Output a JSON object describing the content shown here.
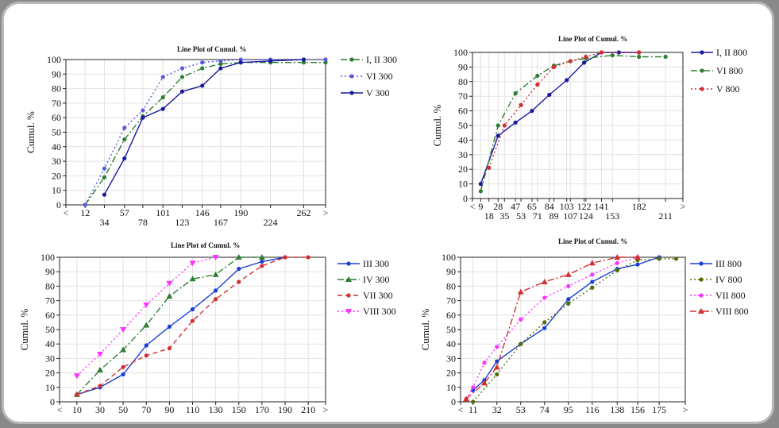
{
  "chart_data": [
    {
      "type": "line",
      "title": "Line Plot of Cumul. %",
      "ylabel": "Cumul. %",
      "ylim": [
        0,
        100
      ],
      "yticks": [
        0,
        10,
        20,
        30,
        40,
        50,
        60,
        70,
        80,
        90,
        100
      ],
      "xlim": [
        -10,
        287
      ],
      "xticks": [
        {
          "v": -10,
          "label": "<"
        },
        {
          "v": 12,
          "label": "12"
        },
        {
          "v": 34,
          "label": "34"
        },
        {
          "v": 57,
          "label": "57"
        },
        {
          "v": 78,
          "label": "78"
        },
        {
          "v": 101,
          "label": "101"
        },
        {
          "v": 123,
          "label": "123"
        },
        {
          "v": 146,
          "label": "146"
        },
        {
          "v": 167,
          "label": "167"
        },
        {
          "v": 190,
          "label": "190"
        },
        {
          "v": 224,
          "label": "224"
        },
        {
          "v": 262,
          "label": "262"
        },
        {
          "v": 287,
          "label": ">"
        }
      ],
      "series": [
        {
          "name": "I, II 300",
          "color": "#2e7d32",
          "style": "dashdot",
          "marker": "dot",
          "points": [
            [
              12,
              0
            ],
            [
              34,
              19
            ],
            [
              57,
              45
            ],
            [
              78,
              61
            ],
            [
              101,
              74
            ],
            [
              123,
              88
            ],
            [
              146,
              94
            ],
            [
              167,
              97
            ],
            [
              190,
              98
            ],
            [
              224,
              98
            ],
            [
              262,
              98
            ],
            [
              287,
              98
            ]
          ]
        },
        {
          "name": "VI 300",
          "color": "#5a5ae0",
          "style": "dotted",
          "marker": "dot",
          "points": [
            [
              12,
              0
            ],
            [
              34,
              25
            ],
            [
              57,
              53
            ],
            [
              78,
              65
            ],
            [
              101,
              88
            ],
            [
              123,
              94
            ],
            [
              146,
              98
            ],
            [
              167,
              99
            ],
            [
              190,
              100
            ],
            [
              224,
              100
            ],
            [
              262,
              100
            ],
            [
              287,
              100
            ]
          ]
        },
        {
          "name": "V 300",
          "color": "#1a1aa0",
          "style": "solid",
          "marker": "dot",
          "points": [
            [
              34,
              7
            ],
            [
              57,
              32
            ],
            [
              78,
              60
            ],
            [
              101,
              66
            ],
            [
              123,
              78
            ],
            [
              146,
              82
            ],
            [
              167,
              94
            ],
            [
              190,
              98
            ],
            [
              224,
              99
            ],
            [
              262,
              100
            ]
          ]
        }
      ]
    },
    {
      "type": "line",
      "title": "Line Plot of Cumul. %",
      "ylabel": "Cumul. %",
      "ylim": [
        0,
        100
      ],
      "yticks": [
        0,
        10,
        20,
        30,
        40,
        50,
        60,
        70,
        80,
        90,
        100
      ],
      "xlim": [
        0,
        230
      ],
      "xticks": [
        {
          "v": 0,
          "label": "<"
        },
        {
          "v": 9,
          "label": "9"
        },
        {
          "v": 18,
          "label": "18"
        },
        {
          "v": 28,
          "label": "28"
        },
        {
          "v": 35,
          "label": "35"
        },
        {
          "v": 47,
          "label": "47"
        },
        {
          "v": 53,
          "label": "53"
        },
        {
          "v": 65,
          "label": "65"
        },
        {
          "v": 71,
          "label": "71"
        },
        {
          "v": 84,
          "label": "84"
        },
        {
          "v": 89,
          "label": "89"
        },
        {
          "v": 103,
          "label": "103"
        },
        {
          "v": 107,
          "label": "107"
        },
        {
          "v": 122,
          "label": "122"
        },
        {
          "v": 124,
          "label": "124"
        },
        {
          "v": 141,
          "label": "141"
        },
        {
          "v": 153,
          "label": "153"
        },
        {
          "v": 182,
          "label": "182"
        },
        {
          "v": 211,
          "label": "211"
        },
        {
          "v": 230,
          "label": ">"
        }
      ],
      "series": [
        {
          "name": "I, II 800",
          "color": "#1a1aa0",
          "style": "solid",
          "marker": "dot",
          "points": [
            [
              9,
              10
            ],
            [
              28,
              43
            ],
            [
              47,
              52
            ],
            [
              65,
              60
            ],
            [
              84,
              71
            ],
            [
              103,
              81
            ],
            [
              122,
              93
            ],
            [
              141,
              100
            ],
            [
              160,
              100
            ],
            [
              182,
              100
            ]
          ]
        },
        {
          "name": "VI 800",
          "color": "#2e7d32",
          "style": "dashdot",
          "marker": "dot",
          "points": [
            [
              9,
              5
            ],
            [
              28,
              50
            ],
            [
              47,
              72
            ],
            [
              71,
              84
            ],
            [
              89,
              91
            ],
            [
              107,
              94
            ],
            [
              124,
              96
            ],
            [
              153,
              98
            ],
            [
              182,
              97
            ],
            [
              211,
              97
            ]
          ]
        },
        {
          "name": "V 800",
          "color": "#d32f2f",
          "style": "dotted",
          "marker": "dot",
          "points": [
            [
              18,
              21
            ],
            [
              35,
              50
            ],
            [
              53,
              64
            ],
            [
              71,
              78
            ],
            [
              89,
              90
            ],
            [
              107,
              94
            ],
            [
              124,
              97
            ],
            [
              141,
              100
            ],
            [
              182,
              100
            ]
          ]
        }
      ]
    },
    {
      "type": "line",
      "title": "Line Plot of Cumul. %",
      "ylabel": "Cumul. %",
      "ylim": [
        0,
        100
      ],
      "yticks": [
        0,
        10,
        20,
        30,
        40,
        50,
        60,
        70,
        80,
        90,
        100
      ],
      "xlim": [
        -5,
        225
      ],
      "xticks": [
        {
          "v": -5,
          "label": "<"
        },
        {
          "v": 10,
          "label": "10"
        },
        {
          "v": 30,
          "label": "30"
        },
        {
          "v": 50,
          "label": "50"
        },
        {
          "v": 70,
          "label": "70"
        },
        {
          "v": 90,
          "label": "90"
        },
        {
          "v": 110,
          "label": "110"
        },
        {
          "v": 130,
          "label": "130"
        },
        {
          "v": 150,
          "label": "150"
        },
        {
          "v": 170,
          "label": "170"
        },
        {
          "v": 190,
          "label": "190"
        },
        {
          "v": 210,
          "label": "210"
        },
        {
          "v": 225,
          "label": ">"
        }
      ],
      "series": [
        {
          "name": "III 300",
          "color": "#1a3fd6",
          "style": "solid",
          "marker": "dot",
          "points": [
            [
              10,
              5
            ],
            [
              30,
              10
            ],
            [
              50,
              19
            ],
            [
              70,
              39
            ],
            [
              90,
              52
            ],
            [
              110,
              64
            ],
            [
              130,
              77
            ],
            [
              150,
              92
            ],
            [
              170,
              97
            ],
            [
              190,
              100
            ]
          ]
        },
        {
          "name": "IV 300",
          "color": "#2e7d32",
          "style": "dashdot",
          "marker": "triangle",
          "points": [
            [
              10,
              5
            ],
            [
              30,
              22
            ],
            [
              50,
              36
            ],
            [
              70,
              53
            ],
            [
              90,
              73
            ],
            [
              110,
              85
            ],
            [
              130,
              88
            ],
            [
              150,
              100
            ],
            [
              170,
              100
            ]
          ]
        },
        {
          "name": "VII 300",
          "color": "#d32f2f",
          "style": "dashed",
          "marker": "dot",
          "points": [
            [
              10,
              5
            ],
            [
              30,
              11
            ],
            [
              50,
              24
            ],
            [
              70,
              32
            ],
            [
              90,
              37
            ],
            [
              110,
              56
            ],
            [
              130,
              71
            ],
            [
              150,
              83
            ],
            [
              170,
              94
            ],
            [
              190,
              100
            ],
            [
              210,
              100
            ]
          ]
        },
        {
          "name": "VIII 300",
          "color": "#ff33ff",
          "style": "dotted",
          "marker": "triangle-down",
          "points": [
            [
              10,
              18
            ],
            [
              30,
              33
            ],
            [
              50,
              50
            ],
            [
              70,
              67
            ],
            [
              90,
              82
            ],
            [
              110,
              96
            ],
            [
              130,
              100
            ]
          ]
        }
      ]
    },
    {
      "type": "line",
      "title": "Line Plot of Cumul. %",
      "ylabel": "Cumul. %",
      "ylim": [
        0,
        100
      ],
      "yticks": [
        0,
        10,
        20,
        30,
        40,
        50,
        60,
        70,
        80,
        90,
        100
      ],
      "xlim": [
        0,
        198
      ],
      "xticks": [
        {
          "v": 0,
          "label": "<"
        },
        {
          "v": 11,
          "label": "11"
        },
        {
          "v": 32,
          "label": "32"
        },
        {
          "v": 53,
          "label": "53"
        },
        {
          "v": 74,
          "label": "74"
        },
        {
          "v": 95,
          "label": "95"
        },
        {
          "v": 116,
          "label": "116"
        },
        {
          "v": 138,
          "label": "138"
        },
        {
          "v": 156,
          "label": "156"
        },
        {
          "v": 175,
          "label": "175"
        },
        {
          "v": 198,
          "label": ">"
        }
      ],
      "series": [
        {
          "name": "III 800",
          "color": "#1a3fd6",
          "style": "solid",
          "marker": "dot",
          "points": [
            [
              11,
              8
            ],
            [
              21,
              15
            ],
            [
              32,
              28
            ],
            [
              53,
              40
            ],
            [
              74,
              51
            ],
            [
              95,
              71
            ],
            [
              116,
              83
            ],
            [
              138,
              92
            ],
            [
              156,
              95
            ],
            [
              175,
              100
            ]
          ]
        },
        {
          "name": "IV 800",
          "color": "#556b00",
          "style": "dotted",
          "marker": "dot",
          "points": [
            [
              11,
              0
            ],
            [
              32,
              19
            ],
            [
              53,
              40
            ],
            [
              74,
              55
            ],
            [
              95,
              68
            ],
            [
              116,
              79
            ],
            [
              138,
              91
            ],
            [
              156,
              98
            ],
            [
              175,
              99
            ],
            [
              190,
              99
            ]
          ]
        },
        {
          "name": "VII 800",
          "color": "#ff33ff",
          "style": "dotted",
          "marker": "dot",
          "points": [
            [
              5,
              2
            ],
            [
              11,
              10
            ],
            [
              21,
              27
            ],
            [
              32,
              38
            ],
            [
              53,
              57
            ],
            [
              74,
              72
            ],
            [
              95,
              80
            ],
            [
              116,
              88
            ],
            [
              138,
              96
            ],
            [
              156,
              100
            ]
          ]
        },
        {
          "name": "VIII 800",
          "color": "#d32f2f",
          "style": "dashdot",
          "marker": "triangle",
          "points": [
            [
              5,
              2
            ],
            [
              21,
              13
            ],
            [
              32,
              24
            ],
            [
              53,
              76
            ],
            [
              74,
              83
            ],
            [
              95,
              88
            ],
            [
              116,
              96
            ],
            [
              138,
              100
            ],
            [
              156,
              100
            ]
          ]
        }
      ]
    }
  ]
}
